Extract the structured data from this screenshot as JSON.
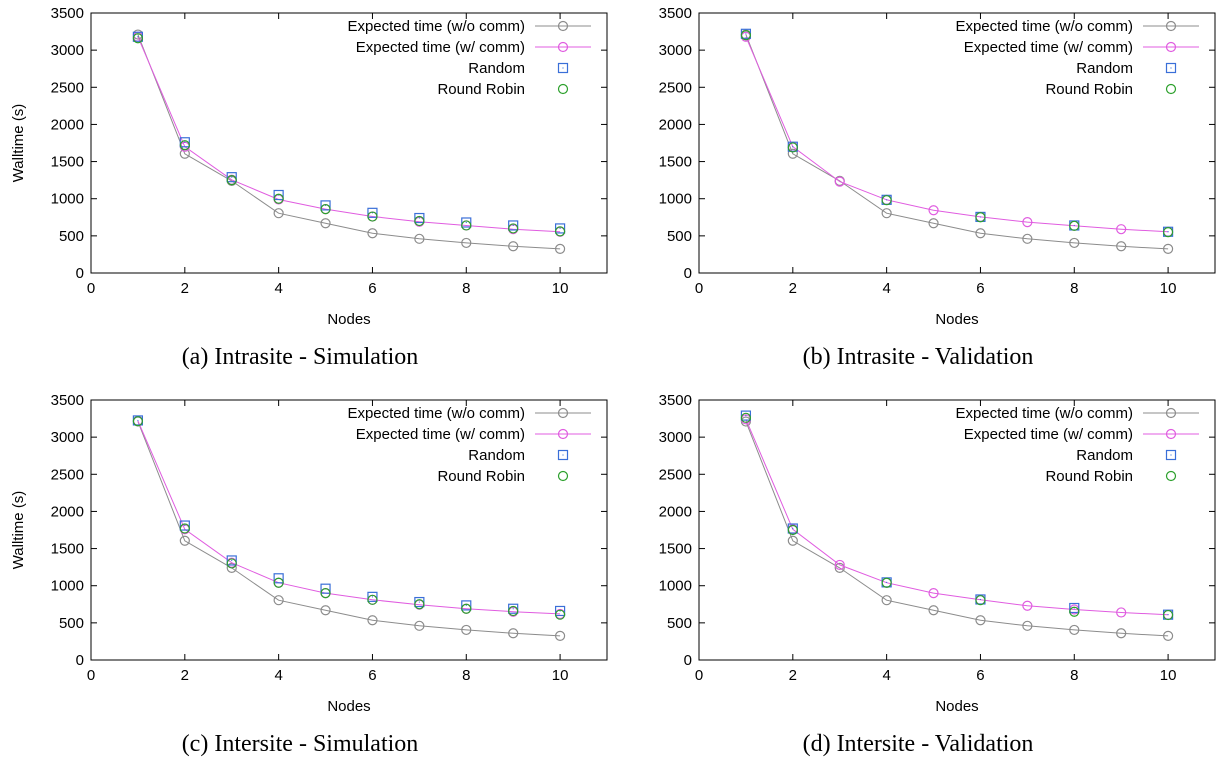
{
  "chart_data": [
    {
      "type": "line",
      "caption": "(a) Intrasite - Simulation",
      "xlabel": "Nodes",
      "ylabel": "Walltime (s)",
      "xlim": [
        0,
        11
      ],
      "ylim": [
        0,
        3500
      ],
      "xticks": [
        "0",
        "2",
        "4",
        "6",
        "8",
        "10"
      ],
      "yticks": [
        "0",
        "500",
        "1000",
        "1500",
        "2000",
        "2500",
        "3000",
        "3500"
      ],
      "legend_position": "top-right",
      "grid": false,
      "series": [
        {
          "name": "Expected time (w/o comm)",
          "color": "#8c8c8c",
          "marker": "circle",
          "line": true,
          "x": [
            1,
            2,
            3,
            4,
            5,
            6,
            7,
            8,
            9,
            10
          ],
          "y": [
            3210,
            1605,
            1240,
            805,
            670,
            535,
            460,
            405,
            360,
            325
          ]
        },
        {
          "name": "Expected time (w/ comm)",
          "color": "#e05ce0",
          "marker": "circle",
          "line": true,
          "x": [
            1,
            2,
            3,
            4,
            5,
            6,
            7,
            8,
            9,
            10
          ],
          "y": [
            3180,
            1700,
            1255,
            990,
            860,
            760,
            690,
            640,
            590,
            555
          ]
        },
        {
          "name": "Random",
          "color": "#3a6fd8",
          "marker": "square",
          "line": false,
          "x": [
            1,
            2,
            3,
            4,
            5,
            6,
            7,
            8,
            9,
            10
          ],
          "y": [
            3180,
            1760,
            1290,
            1050,
            910,
            810,
            740,
            680,
            640,
            600
          ]
        },
        {
          "name": "Round Robin",
          "color": "#2ca02c",
          "marker": "circle",
          "line": false,
          "x": [
            1,
            2,
            3,
            4,
            5,
            6,
            7,
            8,
            9,
            10
          ],
          "y": [
            3160,
            1720,
            1250,
            1000,
            860,
            760,
            700,
            640,
            600,
            560
          ]
        }
      ]
    },
    {
      "type": "line",
      "caption": "(b) Intrasite - Validation",
      "xlabel": "Nodes",
      "ylabel": "",
      "xlim": [
        0,
        11
      ],
      "ylim": [
        0,
        3500
      ],
      "xticks": [
        "0",
        "2",
        "4",
        "6",
        "8",
        "10"
      ],
      "yticks": [
        "0",
        "500",
        "1000",
        "1500",
        "2000",
        "2500",
        "3000",
        "3500"
      ],
      "legend_position": "top-right",
      "grid": false,
      "series": [
        {
          "name": "Expected time (w/o comm)",
          "color": "#8c8c8c",
          "marker": "circle",
          "line": true,
          "x": [
            1,
            2,
            3,
            4,
            5,
            6,
            7,
            8,
            9,
            10
          ],
          "y": [
            3210,
            1605,
            1240,
            805,
            670,
            535,
            460,
            405,
            360,
            325
          ]
        },
        {
          "name": "Expected time (w/ comm)",
          "color": "#e05ce0",
          "marker": "circle",
          "line": true,
          "x": [
            1,
            2,
            3,
            4,
            5,
            6,
            7,
            8,
            9,
            10
          ],
          "y": [
            3180,
            1700,
            1230,
            985,
            845,
            755,
            685,
            635,
            590,
            555
          ]
        },
        {
          "name": "Random",
          "color": "#3a6fd8",
          "marker": "square",
          "line": false,
          "x": [
            1,
            2,
            4,
            6,
            8,
            10
          ],
          "y": [
            3220,
            1700,
            985,
            755,
            640,
            555
          ]
        },
        {
          "name": "Round Robin",
          "color": "#2ca02c",
          "marker": "circle",
          "line": false,
          "x": [
            1,
            2,
            4,
            6,
            8,
            10
          ],
          "y": [
            3200,
            1690,
            980,
            750,
            635,
            550
          ]
        }
      ]
    },
    {
      "type": "line",
      "caption": "(c) Intersite - Simulation",
      "xlabel": "Nodes",
      "ylabel": "Walltime (s)",
      "xlim": [
        0,
        11
      ],
      "ylim": [
        0,
        3500
      ],
      "xticks": [
        "0",
        "2",
        "4",
        "6",
        "8",
        "10"
      ],
      "yticks": [
        "0",
        "500",
        "1000",
        "1500",
        "2000",
        "2500",
        "3000",
        "3500"
      ],
      "legend_position": "top-right",
      "grid": false,
      "series": [
        {
          "name": "Expected time (w/o comm)",
          "color": "#8c8c8c",
          "marker": "circle",
          "line": true,
          "x": [
            1,
            2,
            3,
            4,
            5,
            6,
            7,
            8,
            9,
            10
          ],
          "y": [
            3210,
            1605,
            1240,
            805,
            670,
            535,
            460,
            405,
            360,
            325
          ]
        },
        {
          "name": "Expected time (w/ comm)",
          "color": "#e05ce0",
          "marker": "circle",
          "line": true,
          "x": [
            1,
            2,
            3,
            4,
            5,
            6,
            7,
            8,
            9,
            10
          ],
          "y": [
            3220,
            1760,
            1310,
            1040,
            900,
            810,
            745,
            690,
            650,
            620
          ]
        },
        {
          "name": "Random",
          "color": "#3a6fd8",
          "marker": "square",
          "line": false,
          "x": [
            1,
            2,
            3,
            4,
            5,
            6,
            7,
            8,
            9,
            10
          ],
          "y": [
            3225,
            1810,
            1340,
            1100,
            960,
            850,
            780,
            735,
            690,
            660
          ]
        },
        {
          "name": "Round Robin",
          "color": "#2ca02c",
          "marker": "circle",
          "line": false,
          "x": [
            1,
            2,
            3,
            4,
            5,
            6,
            7,
            8,
            9,
            10
          ],
          "y": [
            3215,
            1770,
            1300,
            1040,
            900,
            810,
            750,
            690,
            660,
            610
          ]
        }
      ]
    },
    {
      "type": "line",
      "caption": "(d) Intersite - Validation",
      "xlabel": "Nodes",
      "ylabel": "",
      "xlim": [
        0,
        11
      ],
      "ylim": [
        0,
        3500
      ],
      "xticks": [
        "0",
        "2",
        "4",
        "6",
        "8",
        "10"
      ],
      "yticks": [
        "0",
        "500",
        "1000",
        "1500",
        "2000",
        "2500",
        "3000",
        "3500"
      ],
      "legend_position": "top-right",
      "grid": false,
      "series": [
        {
          "name": "Expected time (w/o comm)",
          "color": "#8c8c8c",
          "marker": "circle",
          "line": true,
          "x": [
            1,
            2,
            3,
            4,
            5,
            6,
            7,
            8,
            9,
            10
          ],
          "y": [
            3210,
            1605,
            1240,
            805,
            670,
            535,
            460,
            405,
            360,
            325
          ]
        },
        {
          "name": "Expected time (w/ comm)",
          "color": "#e05ce0",
          "marker": "circle",
          "line": true,
          "x": [
            1,
            2,
            3,
            4,
            5,
            6,
            7,
            8,
            9,
            10
          ],
          "y": [
            3240,
            1760,
            1280,
            1040,
            900,
            810,
            730,
            680,
            640,
            610
          ]
        },
        {
          "name": "Random",
          "color": "#3a6fd8",
          "marker": "square",
          "line": false,
          "x": [
            1,
            2,
            4,
            6,
            8,
            10
          ],
          "y": [
            3290,
            1770,
            1045,
            815,
            700,
            610
          ]
        },
        {
          "name": "Round Robin",
          "color": "#2ca02c",
          "marker": "circle",
          "line": false,
          "x": [
            1,
            2,
            4,
            6,
            8,
            10
          ],
          "y": [
            3260,
            1750,
            1040,
            805,
            650,
            605
          ]
        }
      ]
    }
  ]
}
